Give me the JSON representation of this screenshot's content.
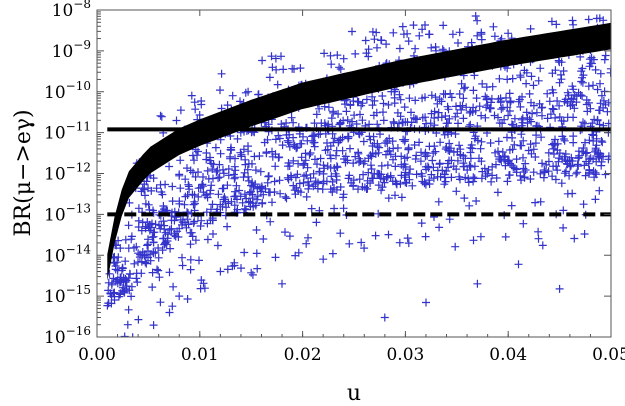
{
  "chart_data": {
    "type": "scatter",
    "title": "",
    "xlabel": "u",
    "ylabel": "BR(μ−>eγ)",
    "x_scale": "linear",
    "y_scale": "log",
    "xlim": [
      0,
      0.05
    ],
    "ylim": [
      1e-16,
      1e-08
    ],
    "grid": false,
    "legend": "none",
    "x_ticks": [
      "0.00",
      "0.01",
      "0.02",
      "0.03",
      "0.04",
      "0.05"
    ],
    "y_ticks": [
      {
        "base": "10",
        "exp": "−8"
      },
      {
        "base": "10",
        "exp": "−9"
      },
      {
        "base": "10",
        "exp": "−10"
      },
      {
        "base": "10",
        "exp": "−11"
      },
      {
        "base": "10",
        "exp": "−12"
      },
      {
        "base": "10",
        "exp": "−13"
      },
      {
        "base": "10",
        "exp": "−14"
      },
      {
        "base": "10",
        "exp": "−15"
      },
      {
        "base": "10",
        "exp": "−16"
      }
    ],
    "scan_points": {
      "marker": "+",
      "color": "#3333cc",
      "x_range": [
        0.001,
        0.05
      ],
      "upper_envelope": [
        [
          0.001,
          2e-15
        ],
        [
          0.002,
          1e-13
        ],
        [
          0.004,
          3e-12
        ],
        [
          0.006,
          3e-11
        ],
        [
          0.01,
          2e-10
        ],
        [
          0.015,
          8e-10
        ],
        [
          0.02,
          2e-09
        ],
        [
          0.025,
          4e-09
        ],
        [
          0.03,
          6e-09
        ],
        [
          0.04,
          1e-08
        ],
        [
          0.05,
          1e-08
        ]
      ],
      "dense_lower_envelope": [
        [
          0.001,
          3e-16
        ],
        [
          0.005,
          5e-15
        ],
        [
          0.01,
          5e-14
        ],
        [
          0.02,
          3e-13
        ],
        [
          0.03,
          5e-13
        ],
        [
          0.05,
          8e-13
        ]
      ],
      "sparse_outliers": [
        [
          0.003,
          2e-16
        ],
        [
          0.008,
          1e-15
        ],
        [
          0.012,
          4e-15
        ],
        [
          0.018,
          2e-15
        ],
        [
          0.028,
          3e-16
        ],
        [
          0.032,
          7e-16
        ],
        [
          0.037,
          2e-15
        ],
        [
          0.045,
          1.5e-15
        ],
        [
          0.022,
          8e-15
        ],
        [
          0.041,
          6e-15
        ]
      ]
    },
    "band": {
      "color": "#000000",
      "points": [
        [
          0.001,
          5e-15
        ],
        [
          0.002,
          1e-13
        ],
        [
          0.003,
          5e-13
        ],
        [
          0.005,
          2e-12
        ],
        [
          0.008,
          6e-12
        ],
        [
          0.01,
          1e-11
        ],
        [
          0.015,
          3e-11
        ],
        [
          0.02,
          8e-11
        ],
        [
          0.03,
          3e-10
        ],
        [
          0.04,
          9e-10
        ],
        [
          0.05,
          2.3e-09
        ]
      ],
      "width_decades": 0.65
    },
    "lines": [
      {
        "y": 1.2e-11,
        "x_range": [
          0.001,
          0.05
        ],
        "style": "solid",
        "color": "#000000"
      },
      {
        "y": 1e-13,
        "x_range": [
          0.001,
          0.05
        ],
        "style": "dashed",
        "color": "#000000"
      }
    ]
  }
}
